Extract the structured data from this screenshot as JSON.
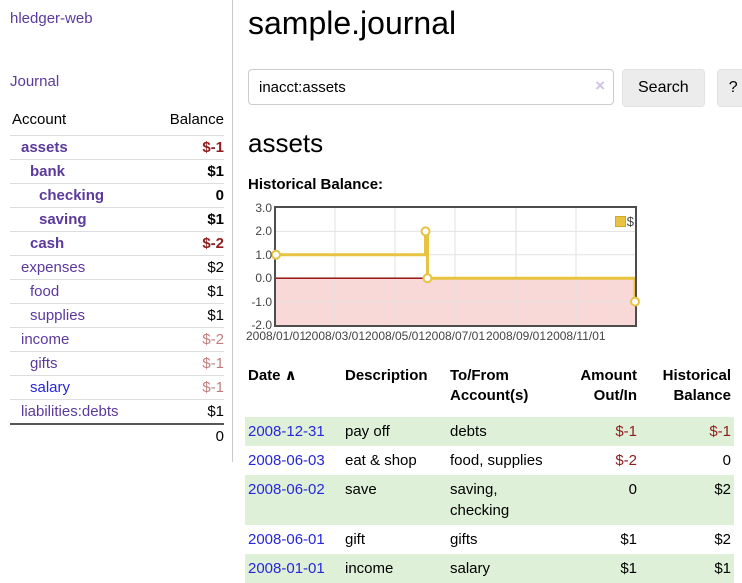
{
  "colors": {
    "link_purple": "#5b3a9c",
    "link_blue": "#2727d9",
    "neg_strong": "#8f1d1d",
    "neg_soft": "#bf7f7f",
    "row_green": "#dff0d8",
    "chart_line": "#e8c341",
    "chart_fill_neg": "#f9d8d8",
    "chart_zero_line": "#8b0000"
  },
  "sidebar": {
    "brand": "hledger-web",
    "nav_journal": "Journal",
    "table": {
      "columns": [
        "Account",
        "Balance"
      ],
      "accounts": [
        {
          "name": "assets",
          "indent": 1,
          "bold": true,
          "balance": "$-1"
        },
        {
          "name": "bank",
          "indent": 2,
          "bold": true,
          "balance": "$1"
        },
        {
          "name": "checking",
          "indent": 3,
          "bold": true,
          "balance": "0"
        },
        {
          "name": "saving",
          "indent": 3,
          "bold": true,
          "balance": "$1"
        },
        {
          "name": "cash",
          "indent": 2,
          "bold": true,
          "balance": "$-2"
        },
        {
          "name": "expenses",
          "indent": 1,
          "bold": false,
          "balance": "$2"
        },
        {
          "name": "food",
          "indent": 2,
          "bold": false,
          "balance": "$1"
        },
        {
          "name": "supplies",
          "indent": 2,
          "bold": false,
          "balance": "$1"
        },
        {
          "name": "income",
          "indent": 1,
          "bold": false,
          "balance": "$-2"
        },
        {
          "name": "gifts",
          "indent": 2,
          "bold": false,
          "balance": "$-1"
        },
        {
          "name": "salary",
          "indent": 2,
          "bold": false,
          "balance": "$-1",
          "link_color": "blue"
        },
        {
          "name": "liabilities:debts",
          "indent": 1,
          "bold": false,
          "balance": "$1"
        }
      ],
      "total": "0"
    }
  },
  "main": {
    "title": "sample.journal",
    "search": {
      "value": "inacct:assets",
      "clear_icon": "×",
      "search_button": "Search",
      "help_button": "?"
    },
    "account_heading": "assets",
    "chart_title": "Historical Balance:"
  },
  "chart_data": {
    "type": "line",
    "step": true,
    "title": "Historical Balance of assets",
    "series": [
      {
        "name": "$",
        "points": [
          [
            "2008-01-01",
            1
          ],
          [
            "2008-06-01",
            2
          ],
          [
            "2008-06-03",
            0
          ],
          [
            "2008-12-31",
            -1
          ]
        ]
      }
    ],
    "xlim": [
      "2008-01-01",
      "2008-12-31"
    ],
    "ylim": [
      -2,
      3
    ],
    "yticks": [
      "3.0",
      "2.0",
      "1.0",
      "0.0",
      "-1.0",
      "-2.0"
    ],
    "xticks": [
      "2008/01/01",
      "2008/03/01",
      "2008/05/01",
      "2008/07/01",
      "2008/09/01",
      "2008/11/01"
    ],
    "grid": true,
    "legend": {
      "label": "$",
      "position": "top-right"
    },
    "negative_region": {
      "from": 0,
      "to": -2
    }
  },
  "register": {
    "sort_icon": "∧",
    "columns": [
      {
        "label": "Date",
        "sorted": "asc",
        "align": "left"
      },
      {
        "label": "Description",
        "align": "left"
      },
      {
        "label": "To/From Account(s)",
        "align": "left"
      },
      {
        "label": "Amount Out/In",
        "align": "right"
      },
      {
        "label": "Historical Balance",
        "align": "right"
      }
    ],
    "rows": [
      {
        "date": "2008-12-31",
        "description": "pay off",
        "accounts": "debts",
        "amount": "$-1",
        "balance": "$-1",
        "shaded": true
      },
      {
        "date": "2008-06-03",
        "description": "eat & shop",
        "accounts": "food, supplies",
        "amount": "$-2",
        "balance": "0",
        "shaded": false
      },
      {
        "date": "2008-06-02",
        "description": "save",
        "accounts": "saving, checking",
        "amount": "0",
        "balance": "$2",
        "shaded": true
      },
      {
        "date": "2008-06-01",
        "description": "gift",
        "accounts": "gifts",
        "amount": "$1",
        "balance": "$2",
        "shaded": false
      },
      {
        "date": "2008-01-01",
        "description": "income",
        "accounts": "salary",
        "amount": "$1",
        "balance": "$1",
        "shaded": true
      }
    ]
  }
}
